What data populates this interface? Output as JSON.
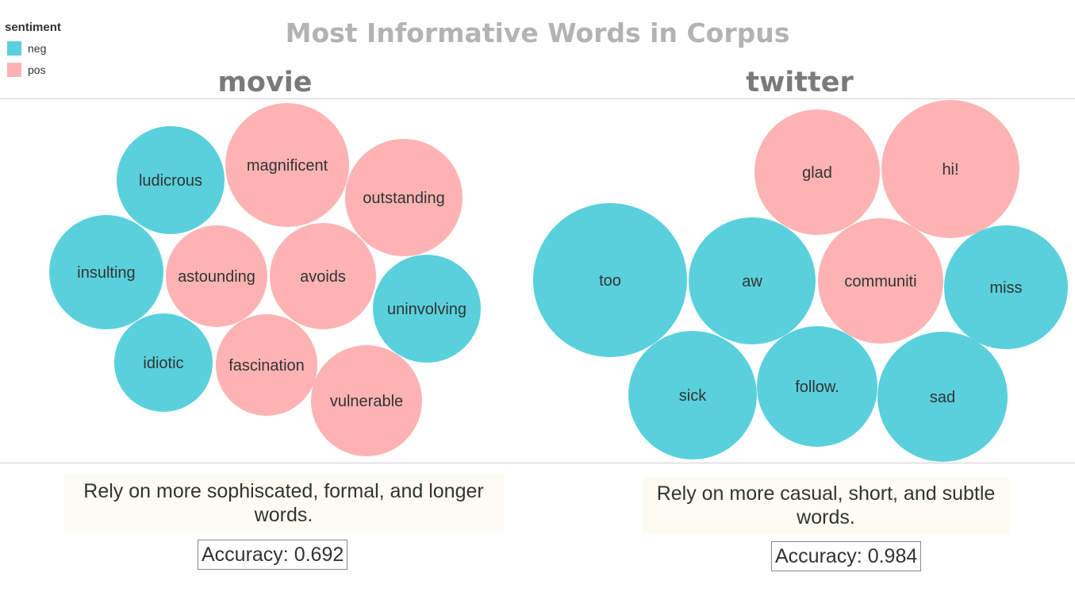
{
  "title": "Most Informative Words in Corpus",
  "legend": {
    "title": "sentiment",
    "items": [
      {
        "label": "neg",
        "color": "#59d0dc"
      },
      {
        "label": "pos",
        "color": "#fdb3b3"
      }
    ]
  },
  "colors": {
    "neg": "#59d0dc",
    "pos": "#fdb3b3"
  },
  "panels": [
    {
      "name": "movie",
      "caption": "Rely on more sophiscated, formal, and longer words.",
      "accuracy": "Accuracy: 0.692"
    },
    {
      "name": "twitter",
      "caption": "Rely on more casual, short, and subtle words.",
      "accuracy": "Accuracy: 0.984"
    }
  ],
  "chart_data": {
    "type": "bubble",
    "title": "Most Informative Words in Corpus",
    "legend": "top-left",
    "panels": [
      {
        "name": "movie",
        "words": [
          {
            "word": "magnificent",
            "sentiment": "pos"
          },
          {
            "word": "ludicrous",
            "sentiment": "neg"
          },
          {
            "word": "outstanding",
            "sentiment": "pos"
          },
          {
            "word": "insulting",
            "sentiment": "neg"
          },
          {
            "word": "astounding",
            "sentiment": "pos"
          },
          {
            "word": "avoids",
            "sentiment": "pos"
          },
          {
            "word": "uninvolving",
            "sentiment": "neg"
          },
          {
            "word": "idiotic",
            "sentiment": "neg"
          },
          {
            "word": "fascination",
            "sentiment": "pos"
          },
          {
            "word": "vulnerable",
            "sentiment": "pos"
          }
        ]
      },
      {
        "name": "twitter",
        "words": [
          {
            "word": "glad",
            "sentiment": "pos"
          },
          {
            "word": "hi!",
            "sentiment": "pos"
          },
          {
            "word": "too",
            "sentiment": "neg"
          },
          {
            "word": "aw",
            "sentiment": "neg"
          },
          {
            "word": "communiti",
            "sentiment": "pos"
          },
          {
            "word": "miss",
            "sentiment": "neg"
          },
          {
            "word": "sick",
            "sentiment": "neg"
          },
          {
            "word": "follow.",
            "sentiment": "neg"
          },
          {
            "word": "sad",
            "sentiment": "neg"
          }
        ]
      }
    ]
  }
}
